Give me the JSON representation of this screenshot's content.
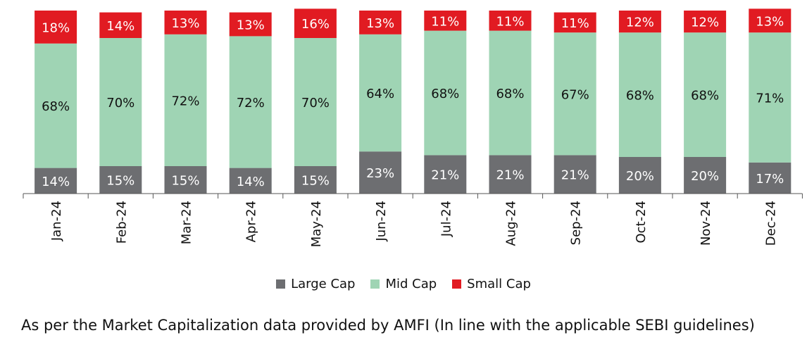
{
  "chart_data": {
    "type": "bar",
    "stacked": true,
    "categories": [
      "Jan-24",
      "Feb-24",
      "Mar-24",
      "Apr-24",
      "May-24",
      "Jun-24",
      "Jul-24",
      "Aug-24",
      "Sep-24",
      "Oct-24",
      "Nov-24",
      "Dec-24"
    ],
    "series": [
      {
        "name": "Large Cap",
        "color": "#6d6e71",
        "values": [
          14,
          15,
          15,
          14,
          15,
          23,
          21,
          21,
          21,
          20,
          20,
          17
        ]
      },
      {
        "name": "Mid Cap",
        "color": "#9fd4b4",
        "values": [
          68,
          70,
          72,
          72,
          70,
          64,
          68,
          68,
          67,
          68,
          68,
          71
        ]
      },
      {
        "name": "Small Cap",
        "color": "#e11b22",
        "values": [
          18,
          14,
          13,
          13,
          16,
          13,
          11,
          11,
          11,
          12,
          12,
          13
        ]
      }
    ],
    "value_suffix": "%",
    "legend_position": "bottom"
  },
  "legend": [
    {
      "label": "Large Cap",
      "color": "#6d6e71"
    },
    {
      "label": "Mid Cap",
      "color": "#9fd4b4"
    },
    {
      "label": "Small Cap",
      "color": "#e11b22"
    }
  ],
  "footnote": "As per the Market Capitalization data provided by AMFI (In line with the applicable SEBI guidelines)"
}
